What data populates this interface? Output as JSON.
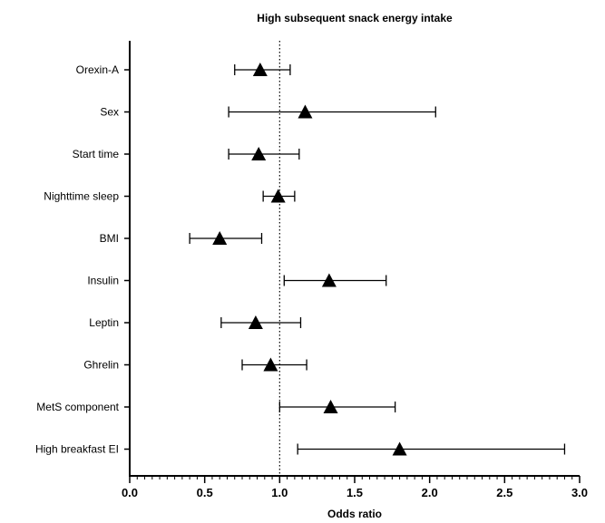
{
  "chart_data": {
    "type": "scatter",
    "subtype": "forest-plot",
    "title": "High subsequent snack energy intake",
    "xlabel": "Odds ratio",
    "ylabel": "",
    "xlim": [
      0.0,
      3.0
    ],
    "xticks": [
      "0.0",
      "0.5",
      "1.0",
      "1.5",
      "2.0",
      "2.5",
      "3.0"
    ],
    "xtick_values": [
      0.0,
      0.5,
      1.0,
      1.5,
      2.0,
      2.5,
      3.0
    ],
    "minor_tick_step": 0.05,
    "reference_line": 1.0,
    "marker": "triangle",
    "categories": [
      "Orexin-A",
      "Sex",
      "Start time",
      "Nighttime sleep",
      "BMI",
      "Insulin",
      "Leptin",
      "Ghrelin",
      "MetS component",
      "High breakfast EI"
    ],
    "estimates": [
      0.87,
      1.17,
      0.86,
      0.99,
      0.6,
      1.33,
      0.84,
      0.94,
      1.34,
      1.8
    ],
    "ci_lower": [
      0.7,
      0.66,
      0.66,
      0.89,
      0.4,
      1.03,
      0.61,
      0.75,
      1.0,
      1.12
    ],
    "ci_upper": [
      1.07,
      2.04,
      1.13,
      1.1,
      0.88,
      1.71,
      1.14,
      1.18,
      1.77,
      2.9
    ],
    "grid": false,
    "legend": "none"
  }
}
